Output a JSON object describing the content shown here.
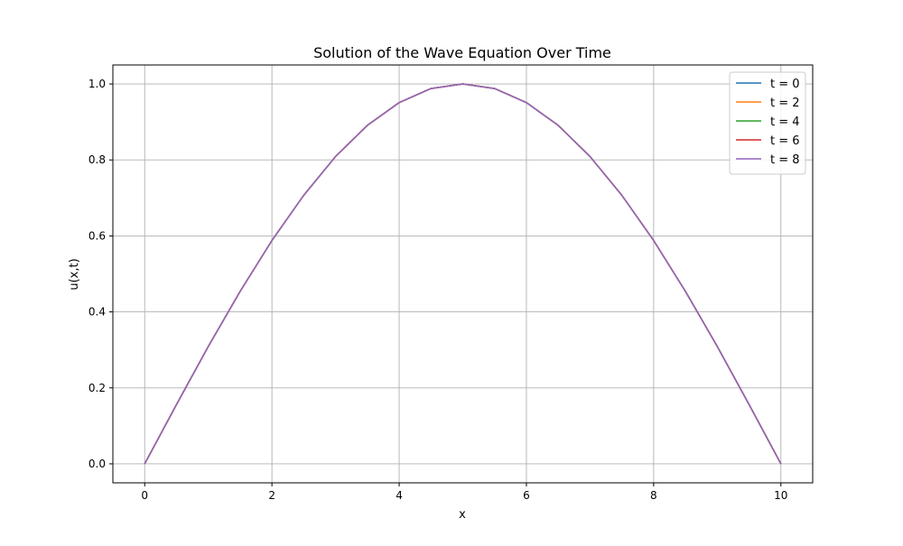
{
  "chart_data": {
    "type": "line",
    "title": "Solution of the Wave Equation Over Time",
    "xlabel": "x",
    "ylabel": "u(x,t)",
    "xlim": [
      -0.5,
      10.5
    ],
    "ylim": [
      -0.05,
      1.05
    ],
    "xticks": [
      0,
      2,
      4,
      6,
      8,
      10
    ],
    "xtick_labels": [
      "0",
      "2",
      "4",
      "6",
      "8",
      "10"
    ],
    "yticks": [
      0.0,
      0.2,
      0.4,
      0.6,
      0.8,
      1.0
    ],
    "ytick_labels": [
      "0.0",
      "0.2",
      "0.4",
      "0.6",
      "0.8",
      "1.0"
    ],
    "grid": true,
    "legend_position": "top-right",
    "x": [
      0,
      0.5,
      1,
      1.5,
      2,
      2.5,
      3,
      3.5,
      4,
      4.5,
      5,
      5.5,
      6,
      6.5,
      7,
      7.5,
      8,
      8.5,
      9,
      9.5,
      10
    ],
    "series": [
      {
        "name": "t = 0",
        "color": "#1f77b4",
        "values": [
          0.0,
          0.156,
          0.309,
          0.454,
          0.588,
          0.707,
          0.809,
          0.891,
          0.951,
          0.988,
          1.0,
          0.988,
          0.951,
          0.891,
          0.809,
          0.707,
          0.588,
          0.454,
          0.309,
          0.156,
          0.0
        ]
      },
      {
        "name": "t = 2",
        "color": "#ff7f0e",
        "values": [
          0.0,
          0.156,
          0.309,
          0.454,
          0.588,
          0.707,
          0.809,
          0.891,
          0.951,
          0.988,
          1.0,
          0.988,
          0.951,
          0.891,
          0.809,
          0.707,
          0.588,
          0.454,
          0.309,
          0.156,
          0.0
        ]
      },
      {
        "name": "t = 4",
        "color": "#2ca02c",
        "values": [
          0.0,
          0.156,
          0.309,
          0.454,
          0.588,
          0.707,
          0.809,
          0.891,
          0.951,
          0.988,
          1.0,
          0.988,
          0.951,
          0.891,
          0.809,
          0.707,
          0.588,
          0.454,
          0.309,
          0.156,
          0.0
        ]
      },
      {
        "name": "t = 6",
        "color": "#d62728",
        "values": [
          0.0,
          0.156,
          0.309,
          0.454,
          0.588,
          0.707,
          0.809,
          0.891,
          0.951,
          0.988,
          1.0,
          0.988,
          0.951,
          0.891,
          0.809,
          0.707,
          0.588,
          0.454,
          0.309,
          0.156,
          0.0
        ]
      },
      {
        "name": "t = 8",
        "color": "#9467bd",
        "values": [
          0.0,
          0.156,
          0.309,
          0.454,
          0.588,
          0.707,
          0.809,
          0.891,
          0.951,
          0.988,
          1.0,
          0.988,
          0.951,
          0.891,
          0.809,
          0.707,
          0.588,
          0.454,
          0.309,
          0.156,
          0.0
        ]
      }
    ]
  }
}
